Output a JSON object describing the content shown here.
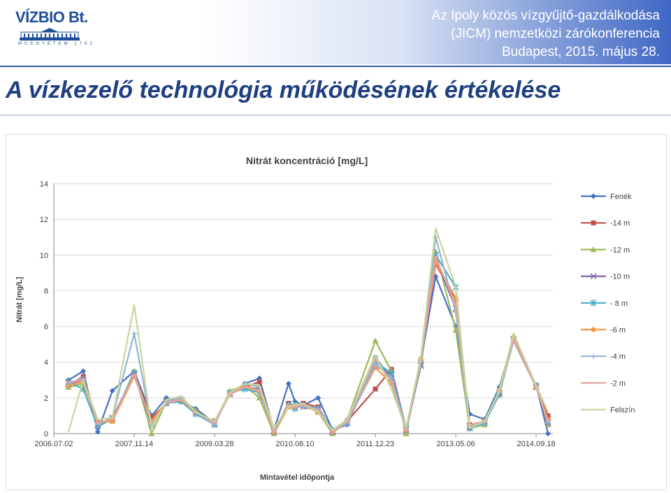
{
  "header": {
    "logo_text": "VÍZBIO Bt.",
    "logo_sub": "MŰEGYETEM 1782",
    "conference_line1": "Az Ipoly közös vízgyűjtő-gazdálkodása",
    "conference_line2": "(JICM) nemzetközi zárókonferencia",
    "conference_line3": "Budapest, 2015. május 28."
  },
  "page_title": "A vízkezelő technológia működésének értékelése",
  "colors": {
    "title": "#1f3f80",
    "header_gradient_end": "#3f67c4"
  },
  "chart_data": {
    "type": "line",
    "title": "Nitrát koncentráció [mg/L]",
    "xlabel": "Mintavétel időpontja",
    "ylabel": "Nitrát [mg/L]",
    "ylim": [
      0,
      14
    ],
    "yticks": [
      0,
      2,
      4,
      6,
      8,
      10,
      12,
      14
    ],
    "xlim": [
      "2006.07.02",
      "2014.12.31"
    ],
    "xtick_labels": [
      "2006.07.02",
      "2007.11.14",
      "2009.03.28",
      "2010.08.10",
      "2011.12.23",
      "2013.05.06",
      "2014.09.18"
    ],
    "legend_position": "right",
    "grid": "horizontal",
    "x": [
      "2006.10.01",
      "2007.01.01",
      "2007.04.01",
      "2007.07.01",
      "2007.11.14",
      "2008.03.01",
      "2008.06.01",
      "2008.09.01",
      "2008.12.01",
      "2009.03.28",
      "2009.07.01",
      "2009.10.01",
      "2010.01.01",
      "2010.04.01",
      "2010.07.01",
      "2010.08.10",
      "2010.10.01",
      "2011.01.01",
      "2011.04.01",
      "2011.07.01",
      "2011.12.23",
      "2012.04.01",
      "2012.07.01",
      "2012.10.01",
      "2013.01.01",
      "2013.05.06",
      "2013.08.01",
      "2013.11.01",
      "2014.02.01",
      "2014.05.01",
      "2014.09.18",
      "2014.12.01"
    ],
    "series": [
      {
        "name": "Fenék",
        "color": "#4472c4",
        "marker": "diamond",
        "values": [
          3.0,
          3.5,
          0.1,
          2.4,
          3.5,
          1.0,
          2.0,
          1.8,
          1.4,
          0.6,
          2.2,
          2.8,
          3.1,
          0.2,
          2.8,
          1.8,
          1.6,
          2.0,
          0.2,
          0.5,
          4.3,
          3.0,
          0.1,
          4.0,
          8.8,
          6.0,
          1.1,
          0.8,
          2.6,
          5.4,
          2.7,
          0.0
        ]
      },
      {
        "name": "-14 m",
        "color": "#c0504d",
        "marker": "square",
        "values": [
          2.7,
          3.2,
          0.6,
          0.8,
          3.4,
          0.9,
          1.7,
          1.9,
          1.2,
          0.7,
          2.3,
          2.6,
          2.9,
          0.1,
          1.7,
          1.5,
          1.7,
          1.5,
          0.1,
          0.7,
          2.5,
          3.6,
          0.3,
          4.0,
          9.5,
          7.5,
          0.5,
          0.6,
          2.2,
          5.3,
          2.7,
          1.0
        ]
      },
      {
        "name": "-12 m",
        "color": "#9bbb59",
        "marker": "triangle",
        "values": [
          2.6,
          2.8,
          0.7,
          0.7,
          3.5,
          0.0,
          1.8,
          2.0,
          1.3,
          0.5,
          2.4,
          2.7,
          2.0,
          0.0,
          1.5,
          1.6,
          1.6,
          1.2,
          0.0,
          0.8,
          5.2,
          3.5,
          0.0,
          4.2,
          10.2,
          5.8,
          0.3,
          0.5,
          2.5,
          5.5,
          2.6,
          0.5
        ]
      },
      {
        "name": "-10 m",
        "color": "#8064a2",
        "marker": "x",
        "values": [
          2.8,
          3.0,
          0.5,
          0.9,
          3.3,
          0.5,
          1.8,
          1.9,
          1.2,
          0.6,
          2.2,
          2.6,
          2.5,
          0.2,
          1.6,
          1.5,
          1.5,
          1.3,
          0.1,
          0.6,
          3.8,
          3.3,
          0.2,
          3.8,
          9.8,
          7.0,
          0.4,
          0.7,
          2.3,
          5.2,
          2.6,
          0.6
        ]
      },
      {
        "name": "- 8 m",
        "color": "#4bacc6",
        "marker": "star",
        "values": [
          2.9,
          2.5,
          0.4,
          0.8,
          3.4,
          0.6,
          1.7,
          1.8,
          1.1,
          0.5,
          2.3,
          2.5,
          2.3,
          0.1,
          1.6,
          1.4,
          1.6,
          1.4,
          0.2,
          0.6,
          4.0,
          3.4,
          0.3,
          3.9,
          10.0,
          8.2,
          0.3,
          0.6,
          2.2,
          5.3,
          2.7,
          0.7
        ]
      },
      {
        "name": "-6 m",
        "color": "#f79646",
        "marker": "circle",
        "values": [
          2.7,
          2.9,
          0.6,
          0.7,
          3.2,
          0.7,
          1.8,
          1.9,
          1.2,
          0.6,
          2.2,
          2.7,
          2.4,
          0.1,
          1.5,
          1.5,
          1.6,
          1.2,
          0.1,
          0.7,
          3.7,
          2.8,
          0.2,
          4.2,
          9.6,
          7.6,
          0.4,
          0.7,
          2.4,
          5.4,
          2.6,
          0.8
        ]
      },
      {
        "name": "-4 m",
        "color": "#95b3d7",
        "marker": "plus",
        "values": [
          2.8,
          3.1,
          0.5,
          0.9,
          5.6,
          0.4,
          1.8,
          2.0,
          1.2,
          0.5,
          2.3,
          2.8,
          2.6,
          0.2,
          1.6,
          1.5,
          1.5,
          1.4,
          0.1,
          0.6,
          3.9,
          3.1,
          0.3,
          4.0,
          11.0,
          6.8,
          0.4,
          0.6,
          2.3,
          5.2,
          2.7,
          0.6
        ]
      },
      {
        "name": "-2 m",
        "color": "#e6a3a1",
        "marker": "dash",
        "values": [
          2.9,
          3.0,
          0.6,
          0.8,
          3.3,
          0.6,
          1.7,
          1.9,
          1.2,
          0.6,
          2.2,
          2.6,
          2.4,
          0.1,
          1.6,
          1.5,
          1.6,
          1.3,
          0.1,
          0.7,
          4.2,
          2.9,
          0.2,
          4.1,
          9.9,
          7.2,
          0.5,
          0.7,
          2.4,
          5.3,
          2.6,
          0.7
        ]
      },
      {
        "name": "Felszín",
        "color": "#c4d79b",
        "marker": "line",
        "values": [
          0.1,
          3.0,
          0.8,
          0.9,
          7.2,
          0.3,
          1.9,
          2.1,
          1.2,
          0.7,
          2.3,
          2.8,
          2.7,
          0.3,
          1.5,
          1.6,
          1.7,
          1.2,
          0.2,
          0.8,
          4.4,
          2.5,
          0.3,
          4.3,
          11.5,
          8.2,
          0.3,
          0.7,
          2.4,
          5.6,
          2.7,
          1.2
        ]
      }
    ]
  }
}
